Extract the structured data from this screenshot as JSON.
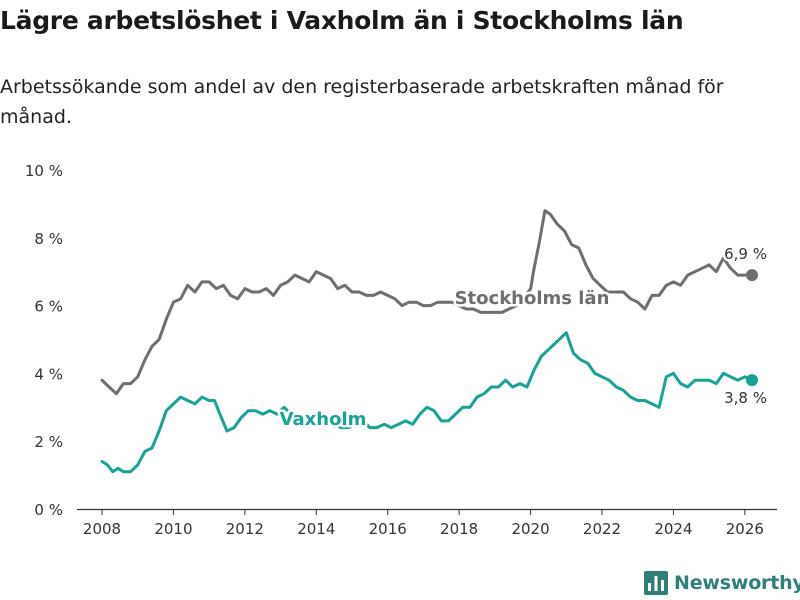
{
  "header": {
    "title": "Lägre arbetslöshet i Vaxholm än i Stockholms län",
    "subtitle": "Arbetssökande som andel av den registerbaserade arbetskraften månad för månad."
  },
  "brand": {
    "name": "Newsworthy",
    "icon": "bar-chart-logo-icon"
  },
  "colors": {
    "stockholm": "#6e6e6e",
    "vaxholm": "#14a396",
    "axis": "#333333",
    "grid": "#e6e6e6",
    "brand": "#2c8079"
  },
  "chart_data": {
    "type": "line",
    "xlabel": "",
    "ylabel": "",
    "xlim": [
      2007.3,
      2026.9
    ],
    "ylim": [
      0,
      10
    ],
    "xticks": [
      2008,
      2010,
      2012,
      2014,
      2016,
      2018,
      2020,
      2022,
      2024,
      2026
    ],
    "xtick_labels": [
      "2008",
      "2010",
      "2012",
      "2014",
      "2016",
      "2018",
      "2020",
      "2022",
      "2024",
      "2026"
    ],
    "yticks": [
      0,
      2,
      4,
      6,
      8,
      10
    ],
    "ytick_labels": [
      "0 %",
      "2 %",
      "4 %",
      "6 %",
      "8 %",
      "10 %"
    ],
    "grid": false,
    "series": [
      {
        "name": "Stockholms län",
        "label": "Stockholms län",
        "end_label": "6,9 %",
        "points": [
          [
            2008.0,
            3.8
          ],
          [
            2008.2,
            3.6
          ],
          [
            2008.4,
            3.4
          ],
          [
            2008.6,
            3.7
          ],
          [
            2008.8,
            3.7
          ],
          [
            2009.0,
            3.9
          ],
          [
            2009.2,
            4.4
          ],
          [
            2009.4,
            4.8
          ],
          [
            2009.6,
            5.0
          ],
          [
            2009.8,
            5.6
          ],
          [
            2010.0,
            6.1
          ],
          [
            2010.2,
            6.2
          ],
          [
            2010.4,
            6.6
          ],
          [
            2010.6,
            6.4
          ],
          [
            2010.8,
            6.7
          ],
          [
            2011.0,
            6.7
          ],
          [
            2011.2,
            6.5
          ],
          [
            2011.4,
            6.6
          ],
          [
            2011.6,
            6.3
          ],
          [
            2011.8,
            6.2
          ],
          [
            2012.0,
            6.5
          ],
          [
            2012.2,
            6.4
          ],
          [
            2012.4,
            6.4
          ],
          [
            2012.6,
            6.5
          ],
          [
            2012.8,
            6.3
          ],
          [
            2013.0,
            6.6
          ],
          [
            2013.2,
            6.7
          ],
          [
            2013.4,
            6.9
          ],
          [
            2013.6,
            6.8
          ],
          [
            2013.8,
            6.7
          ],
          [
            2014.0,
            7.0
          ],
          [
            2014.2,
            6.9
          ],
          [
            2014.4,
            6.8
          ],
          [
            2014.6,
            6.5
          ],
          [
            2014.8,
            6.6
          ],
          [
            2015.0,
            6.4
          ],
          [
            2015.2,
            6.4
          ],
          [
            2015.4,
            6.3
          ],
          [
            2015.6,
            6.3
          ],
          [
            2015.8,
            6.4
          ],
          [
            2016.0,
            6.3
          ],
          [
            2016.2,
            6.2
          ],
          [
            2016.4,
            6.0
          ],
          [
            2016.6,
            6.1
          ],
          [
            2016.8,
            6.1
          ],
          [
            2017.0,
            6.0
          ],
          [
            2017.2,
            6.0
          ],
          [
            2017.4,
            6.1
          ],
          [
            2017.6,
            6.1
          ],
          [
            2017.8,
            6.1
          ],
          [
            2018.0,
            6.0
          ],
          [
            2018.2,
            5.9
          ],
          [
            2018.4,
            5.9
          ],
          [
            2018.6,
            5.8
          ],
          [
            2018.8,
            5.8
          ],
          [
            2019.0,
            5.8
          ],
          [
            2019.2,
            5.8
          ],
          [
            2019.4,
            5.9
          ],
          [
            2019.6,
            6.0
          ],
          [
            2019.8,
            6.2
          ],
          [
            2020.0,
            6.5
          ],
          [
            2020.1,
            7.1
          ],
          [
            2020.25,
            7.9
          ],
          [
            2020.4,
            8.8
          ],
          [
            2020.55,
            8.7
          ],
          [
            2020.75,
            8.4
          ],
          [
            2020.95,
            8.2
          ],
          [
            2021.15,
            7.8
          ],
          [
            2021.35,
            7.7
          ],
          [
            2021.55,
            7.2
          ],
          [
            2021.75,
            6.8
          ],
          [
            2021.95,
            6.6
          ],
          [
            2022.15,
            6.4
          ],
          [
            2022.4,
            6.4
          ],
          [
            2022.6,
            6.4
          ],
          [
            2022.8,
            6.2
          ],
          [
            2023.0,
            6.1
          ],
          [
            2023.2,
            5.9
          ],
          [
            2023.4,
            6.3
          ],
          [
            2023.6,
            6.3
          ],
          [
            2023.8,
            6.6
          ],
          [
            2024.0,
            6.7
          ],
          [
            2024.2,
            6.6
          ],
          [
            2024.4,
            6.9
          ],
          [
            2024.6,
            7.0
          ],
          [
            2024.8,
            7.1
          ],
          [
            2025.0,
            7.2
          ],
          [
            2025.2,
            7.0
          ],
          [
            2025.4,
            7.4
          ],
          [
            2025.6,
            7.1
          ],
          [
            2025.8,
            6.9
          ],
          [
            2026.0,
            6.9
          ],
          [
            2026.2,
            6.9
          ]
        ]
      },
      {
        "name": "Vaxholm",
        "label": "Vaxholm",
        "end_label": "3,8 %",
        "points": [
          [
            2008.0,
            1.4
          ],
          [
            2008.15,
            1.3
          ],
          [
            2008.3,
            1.1
          ],
          [
            2008.45,
            1.2
          ],
          [
            2008.6,
            1.1
          ],
          [
            2008.8,
            1.1
          ],
          [
            2009.0,
            1.3
          ],
          [
            2009.2,
            1.7
          ],
          [
            2009.4,
            1.8
          ],
          [
            2009.6,
            2.3
          ],
          [
            2009.8,
            2.9
          ],
          [
            2010.0,
            3.1
          ],
          [
            2010.2,
            3.3
          ],
          [
            2010.4,
            3.2
          ],
          [
            2010.6,
            3.1
          ],
          [
            2010.8,
            3.3
          ],
          [
            2011.0,
            3.2
          ],
          [
            2011.15,
            3.2
          ],
          [
            2011.3,
            2.8
          ],
          [
            2011.5,
            2.3
          ],
          [
            2011.7,
            2.4
          ],
          [
            2011.9,
            2.7
          ],
          [
            2012.1,
            2.9
          ],
          [
            2012.3,
            2.9
          ],
          [
            2012.5,
            2.8
          ],
          [
            2012.7,
            2.9
          ],
          [
            2012.9,
            2.8
          ],
          [
            2013.1,
            3.0
          ],
          [
            2013.3,
            2.8
          ],
          [
            2013.5,
            2.7
          ],
          [
            2013.7,
            2.6
          ],
          [
            2013.9,
            2.7
          ],
          [
            2014.1,
            2.5
          ],
          [
            2014.3,
            2.6
          ],
          [
            2014.5,
            2.5
          ],
          [
            2014.7,
            2.4
          ],
          [
            2014.9,
            2.4
          ],
          [
            2015.1,
            2.5
          ],
          [
            2015.3,
            2.6
          ],
          [
            2015.5,
            2.4
          ],
          [
            2015.7,
            2.4
          ],
          [
            2015.9,
            2.5
          ],
          [
            2016.1,
            2.4
          ],
          [
            2016.3,
            2.5
          ],
          [
            2016.5,
            2.6
          ],
          [
            2016.7,
            2.5
          ],
          [
            2016.9,
            2.8
          ],
          [
            2017.1,
            3.0
          ],
          [
            2017.3,
            2.9
          ],
          [
            2017.5,
            2.6
          ],
          [
            2017.7,
            2.6
          ],
          [
            2017.9,
            2.8
          ],
          [
            2018.1,
            3.0
          ],
          [
            2018.3,
            3.0
          ],
          [
            2018.5,
            3.3
          ],
          [
            2018.7,
            3.4
          ],
          [
            2018.9,
            3.6
          ],
          [
            2019.1,
            3.6
          ],
          [
            2019.3,
            3.8
          ],
          [
            2019.5,
            3.6
          ],
          [
            2019.7,
            3.7
          ],
          [
            2019.9,
            3.6
          ],
          [
            2020.1,
            4.1
          ],
          [
            2020.3,
            4.5
          ],
          [
            2020.5,
            4.7
          ],
          [
            2020.7,
            4.9
          ],
          [
            2020.9,
            5.1
          ],
          [
            2021.0,
            5.2
          ],
          [
            2021.2,
            4.6
          ],
          [
            2021.4,
            4.4
          ],
          [
            2021.6,
            4.3
          ],
          [
            2021.8,
            4.0
          ],
          [
            2022.0,
            3.9
          ],
          [
            2022.2,
            3.8
          ],
          [
            2022.4,
            3.6
          ],
          [
            2022.6,
            3.5
          ],
          [
            2022.8,
            3.3
          ],
          [
            2023.0,
            3.2
          ],
          [
            2023.2,
            3.2
          ],
          [
            2023.4,
            3.1
          ],
          [
            2023.6,
            3.0
          ],
          [
            2023.8,
            3.9
          ],
          [
            2024.0,
            4.0
          ],
          [
            2024.2,
            3.7
          ],
          [
            2024.4,
            3.6
          ],
          [
            2024.6,
            3.8
          ],
          [
            2024.8,
            3.8
          ],
          [
            2025.0,
            3.8
          ],
          [
            2025.2,
            3.7
          ],
          [
            2025.4,
            4.0
          ],
          [
            2025.6,
            3.9
          ],
          [
            2025.8,
            3.8
          ],
          [
            2026.0,
            3.9
          ],
          [
            2026.2,
            3.8
          ]
        ]
      }
    ]
  }
}
